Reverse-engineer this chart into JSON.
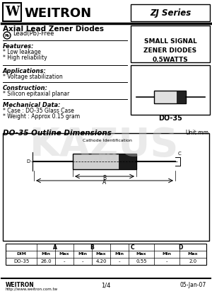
{
  "title_logo": "W WEITRON",
  "series_box": "ZJ Series",
  "main_title": "Axial Lead Zener Diodes",
  "pb_free": "Lead(Pb)-Free",
  "right_box1_lines": [
    "SMALL SIGNAL",
    "ZENER DIODES",
    "0.5WATTS"
  ],
  "package": "DO-35",
  "features_title": "Features:",
  "features": [
    "* Low leakage",
    "* High reliability"
  ],
  "applications_title": "Applications:",
  "applications": [
    "* Voltage stabilization"
  ],
  "construction_title": "Construction:",
  "construction": [
    "* Silicon epitaxial planar"
  ],
  "mech_title": "Mechanical Data:",
  "mech": [
    "* Case : DO-35 Glass Case",
    "* Weight : Approx 0.15 gram"
  ],
  "outline_title": "DO-35 Outline Dimensions",
  "unit": "Unit:mm",
  "cathode_label": "Cathode Identification",
  "dim_sub": [
    "DIM",
    "Min",
    "Max",
    "Min",
    "Max",
    "Min",
    "Max",
    "Min",
    "Max"
  ],
  "dim_row": [
    "DO-35",
    "26.0",
    "-",
    "-",
    "4.20",
    "-",
    "0.55",
    "-",
    "2.0"
  ],
  "footer_left": "WEITRON",
  "footer_url": "http://www.weitron.com.tw",
  "footer_page": "1/4",
  "footer_date": "05-Jan-07",
  "bg_color": "#ffffff",
  "text_color": "#000000"
}
